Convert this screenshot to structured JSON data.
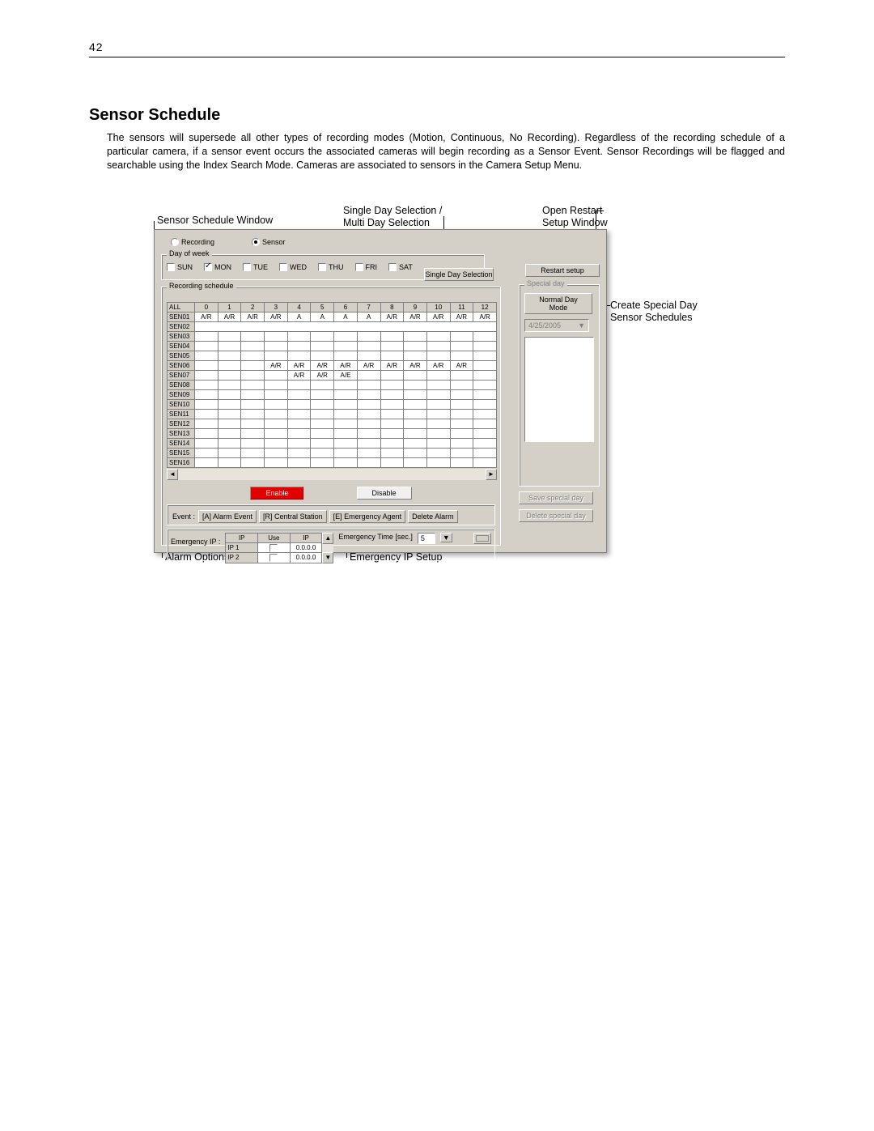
{
  "page": {
    "number": "42"
  },
  "section": {
    "title": "Sensor Schedule",
    "body": "The sensors will supersede all other types of recording modes (Motion, Continuous, No Recording).  Regardless of the recording schedule of a particular camera, if a sensor event occurs the associated cameras will begin recording as a Sensor Event.  Sensor Recordings will be flagged and searchable using the Index Search Mode.  Cameras are associated to sensors in the Camera Setup Menu."
  },
  "callouts": {
    "sensor_window": "Sensor Schedule Window",
    "day_selection_l1": "Single Day Selection /",
    "day_selection_l2": "Multi Day Selection",
    "open_restart_l1": "Open Restart",
    "open_restart_l2": "Setup Window",
    "special_day_l1": "Create Special Day",
    "special_day_l2": "Sensor Schedules",
    "alarm_options": "Alarm Options",
    "emergency_ip": "Emergency IP Setup"
  },
  "dialog": {
    "radios": {
      "recording": "Recording",
      "sensor": "Sensor",
      "selected": "sensor"
    },
    "day_group": "Day of week",
    "days": [
      {
        "label": "SUN",
        "checked": false
      },
      {
        "label": "MON",
        "checked": true
      },
      {
        "label": "TUE",
        "checked": false
      },
      {
        "label": "WED",
        "checked": false
      },
      {
        "label": "THU",
        "checked": false
      },
      {
        "label": "FRI",
        "checked": false
      },
      {
        "label": "SAT",
        "checked": false
      }
    ],
    "single_day_btn": "Single Day Selection",
    "restart_btn": "Restart setup",
    "sched_group": "Recording schedule",
    "columns": [
      "ALL",
      "0",
      "1",
      "2",
      "3",
      "4",
      "5",
      "6",
      "7",
      "8",
      "9",
      "10",
      "11",
      "12"
    ],
    "rows": [
      {
        "name": "SEN01",
        "cells": [
          {
            "v": "A/R",
            "c": "r"
          },
          {
            "v": "A/R",
            "c": "r"
          },
          {
            "v": "A/R",
            "c": "r"
          },
          {
            "v": "A/R",
            "c": "r"
          },
          {
            "v": "A",
            "c": "r"
          },
          {
            "v": "A",
            "c": "r"
          },
          {
            "v": "A",
            "c": "r"
          },
          {
            "v": "A",
            "c": "r"
          },
          {
            "v": "A/R",
            "c": "r"
          },
          {
            "v": "A/R",
            "c": "r"
          },
          {
            "v": "A/R",
            "c": "r"
          },
          {
            "v": "A/R",
            "c": "r"
          },
          {
            "v": "A/R",
            "c": "r"
          }
        ]
      },
      {
        "name": "SEN02",
        "cells": [
          {
            "v": "",
            "c": "r",
            "span": 13
          }
        ]
      },
      {
        "name": "SEN03",
        "cells": [
          {},
          {},
          {},
          {},
          {},
          {},
          {},
          {},
          {},
          {},
          {},
          {},
          {}
        ]
      },
      {
        "name": "SEN04",
        "cells": [
          {},
          {},
          {},
          {},
          {},
          {},
          {},
          {},
          {},
          {},
          {},
          {},
          {}
        ]
      },
      {
        "name": "SEN05",
        "cells": [
          {},
          {},
          {},
          {},
          {},
          {},
          {},
          {},
          {},
          {},
          {},
          {},
          {}
        ]
      },
      {
        "name": "SEN06",
        "cells": [
          {},
          {},
          {},
          {
            "v": "A/R",
            "c": "r"
          },
          {
            "v": "A/R",
            "c": "r"
          },
          {
            "v": "A/R",
            "c": "r"
          },
          {
            "v": "A/R",
            "c": "r"
          },
          {
            "v": "A/R",
            "c": "r"
          },
          {
            "v": "A/R",
            "c": "r"
          },
          {
            "v": "A/R",
            "c": "r"
          },
          {
            "v": "A/R",
            "c": "r"
          },
          {
            "v": "A/R",
            "c": "r"
          },
          {}
        ]
      },
      {
        "name": "SEN07",
        "cells": [
          {},
          {},
          {},
          {},
          {
            "v": "A/R",
            "c": "r"
          },
          {
            "v": "A/R",
            "c": "r"
          },
          {
            "v": "A/E",
            "c": "r"
          },
          {},
          {},
          {},
          {},
          {},
          {}
        ]
      },
      {
        "name": "SEN08",
        "cells": [
          {},
          {},
          {},
          {},
          {},
          {},
          {},
          {},
          {},
          {},
          {},
          {},
          {}
        ]
      },
      {
        "name": "SEN09",
        "cells": [
          {},
          {},
          {},
          {},
          {},
          {},
          {},
          {},
          {},
          {},
          {},
          {},
          {}
        ]
      },
      {
        "name": "SEN10",
        "cells": [
          {},
          {},
          {},
          {},
          {},
          {},
          {},
          {},
          {},
          {},
          {},
          {},
          {}
        ]
      },
      {
        "name": "SEN11",
        "cells": [
          {},
          {},
          {},
          {},
          {},
          {},
          {},
          {},
          {},
          {},
          {},
          {},
          {}
        ]
      },
      {
        "name": "SEN12",
        "cells": [
          {},
          {},
          {},
          {},
          {
            "c": "r"
          },
          {
            "c": "r"
          },
          {
            "c": "r"
          },
          {
            "c": "r"
          },
          {},
          {},
          {
            "c": "b"
          },
          {},
          {}
        ]
      },
      {
        "name": "SEN13",
        "cells": [
          {},
          {},
          {},
          {},
          {},
          {},
          {},
          {},
          {},
          {},
          {},
          {},
          {}
        ]
      },
      {
        "name": "SEN14",
        "cells": [
          {},
          {},
          {},
          {},
          {},
          {},
          {},
          {},
          {},
          {},
          {},
          {},
          {}
        ]
      },
      {
        "name": "SEN15",
        "cells": [
          {},
          {},
          {},
          {},
          {},
          {},
          {},
          {},
          {},
          {},
          {},
          {},
          {}
        ]
      },
      {
        "name": "SEN16",
        "cells": [
          {},
          {},
          {},
          {},
          {},
          {},
          {},
          {},
          {},
          {},
          {},
          {},
          {}
        ]
      }
    ],
    "enable_btn": "Enable",
    "disable_btn": "Disable",
    "event_label": "Event :",
    "event_buttons": [
      "[A] Alarm Event",
      "[R] Central Station",
      "[E] Emergency Agent",
      "Delete Alarm"
    ],
    "emergency_label": "Emergency IP :",
    "ip_headers": [
      "IP",
      "Use",
      "IP"
    ],
    "ip_rows": [
      {
        "name": "IP 1",
        "use": false,
        "ip": "0.0.0.0"
      },
      {
        "name": "IP 2",
        "use": false,
        "ip": "0.0.0.0"
      }
    ],
    "emergency_time_label": "Emergency Time [sec.]",
    "emergency_time_value": "5",
    "special_group": "Special day",
    "normal_mode_btn": "Normal Day Mode",
    "date_value": "4/25/2005",
    "save_special_btn": "Save special day",
    "delete_special_btn": "Delete special day"
  },
  "colors": {
    "dialog_bg": "#d4d0c8",
    "cell_red": "#ff0000",
    "cell_blue": "#0000c0"
  }
}
